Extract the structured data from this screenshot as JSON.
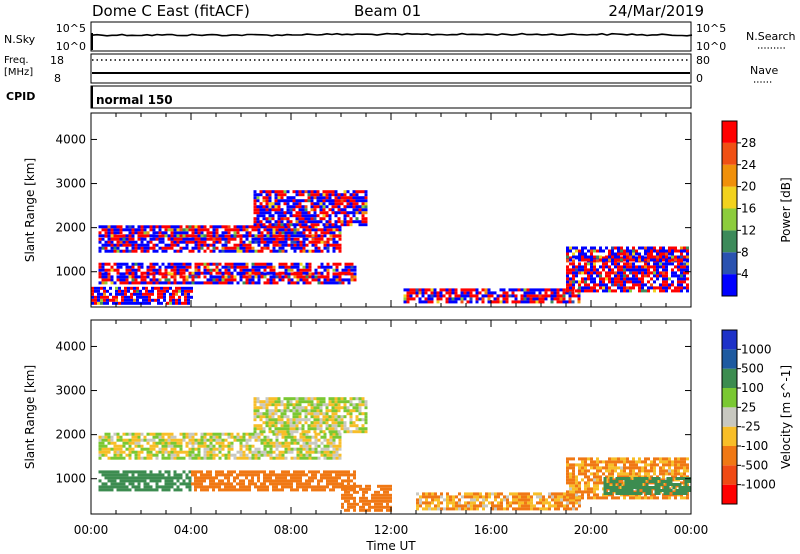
{
  "header": {
    "title": "Dome C East (fitACF)",
    "beam": "Beam 01",
    "date": "24/Mar/2019"
  },
  "strips": {
    "nsky": {
      "label": "N.Sky",
      "ticks": [
        "10^5",
        "10^0"
      ],
      "right_label": "N.Search",
      "right_ticks": [
        "10^5",
        "10^0"
      ]
    },
    "freq": {
      "label_line1": "Freq.",
      "label_line2": "[MHz]",
      "ticks": [
        "18",
        "8"
      ],
      "right_label": "Nave",
      "right_ticks": [
        "80",
        "0"
      ]
    },
    "cpid": {
      "label": "CPID",
      "value": "normal 150"
    }
  },
  "colors": {
    "power": [
      "#0000ff",
      "#2a52b0",
      "#3c8a5a",
      "#8ccc3c",
      "#f2d21e",
      "#f0900a",
      "#f05014",
      "#ff0000"
    ],
    "velocity": [
      "#ff0000",
      "#f04a14",
      "#f07814",
      "#f8be28",
      "#c8c8c0",
      "#7ac832",
      "#3c8c50",
      "#1e5aa0",
      "#1e32c8"
    ]
  },
  "chart_data": [
    {
      "type": "heatmap",
      "panel": "power",
      "xlabel": "",
      "ylabel": "Slant Range [km]",
      "ylim": [
        200,
        4600
      ],
      "y_ticks": [
        1000,
        2000,
        3000,
        4000
      ],
      "x_tick_labels": [
        "00:00",
        "04:00",
        "08:00",
        "12:00",
        "16:00",
        "20:00",
        "00:00"
      ],
      "colorbar": {
        "label": "Power [dB]",
        "ticks": [
          "4",
          "8",
          "12",
          "16",
          "20",
          "24",
          "28"
        ],
        "range": [
          0,
          32
        ]
      },
      "regions": [
        {
          "t0": 0.3,
          "t1": 10.5,
          "r0": 780,
          "r1": 1000,
          "level": 24
        },
        {
          "t0": 0.3,
          "t1": 10.5,
          "r0": 1000,
          "r1": 1250,
          "level": 16
        },
        {
          "t0": 0.3,
          "t1": 10.0,
          "r0": 1500,
          "r1": 1850,
          "level": 12
        },
        {
          "t0": 0.3,
          "t1": 10.0,
          "r0": 1850,
          "r1": 2100,
          "level": 14
        },
        {
          "t0": 6.5,
          "t1": 11.0,
          "r0": 2100,
          "r1": 2900,
          "level": 14
        },
        {
          "t0": 0.0,
          "t1": 4.0,
          "r0": 250,
          "r1": 700,
          "level": 12
        },
        {
          "t0": 12.5,
          "t1": 19.5,
          "r0": 350,
          "r1": 650,
          "level": 22
        },
        {
          "t0": 19.0,
          "t1": 24.0,
          "r0": 600,
          "r1": 1400,
          "level": 24
        },
        {
          "t0": 19.0,
          "t1": 24.0,
          "r0": 1300,
          "r1": 1600,
          "level": 12
        }
      ]
    },
    {
      "type": "heatmap",
      "panel": "velocity",
      "xlabel": "Time UT",
      "ylabel": "Slant Range [km]",
      "ylim": [
        200,
        4600
      ],
      "y_ticks": [
        1000,
        2000,
        3000,
        4000
      ],
      "x_tick_labels": [
        "00:00",
        "04:00",
        "08:00",
        "12:00",
        "16:00",
        "20:00",
        "00:00"
      ],
      "colorbar": {
        "label": "Velocity [m s^-1]",
        "ticks": [
          "1000",
          "500",
          "100",
          "25",
          "-25",
          "-100",
          "-500",
          "-1000"
        ],
        "range": [
          -1500,
          1500
        ]
      },
      "regions": [
        {
          "t0": 0.3,
          "t1": 10.0,
          "r0": 1500,
          "r1": 2100,
          "level": 0
        },
        {
          "t0": 6.5,
          "t1": 11.0,
          "r0": 2100,
          "r1": 2900,
          "level": 0
        },
        {
          "t0": 0.3,
          "t1": 4.0,
          "r0": 780,
          "r1": 1250,
          "level": 300
        },
        {
          "t0": 4.0,
          "t1": 10.5,
          "r0": 780,
          "r1": 1250,
          "level": -200
        },
        {
          "t0": 10.0,
          "t1": 12.0,
          "r0": 250,
          "r1": 900,
          "level": -300
        },
        {
          "t0": 13.0,
          "t1": 19.5,
          "r0": 350,
          "r1": 700,
          "level": -100
        },
        {
          "t0": 19.0,
          "t1": 24.0,
          "r0": 600,
          "r1": 1500,
          "level": -120
        },
        {
          "t0": 20.5,
          "t1": 24.0,
          "r0": 700,
          "r1": 1100,
          "level": 200
        }
      ]
    }
  ]
}
